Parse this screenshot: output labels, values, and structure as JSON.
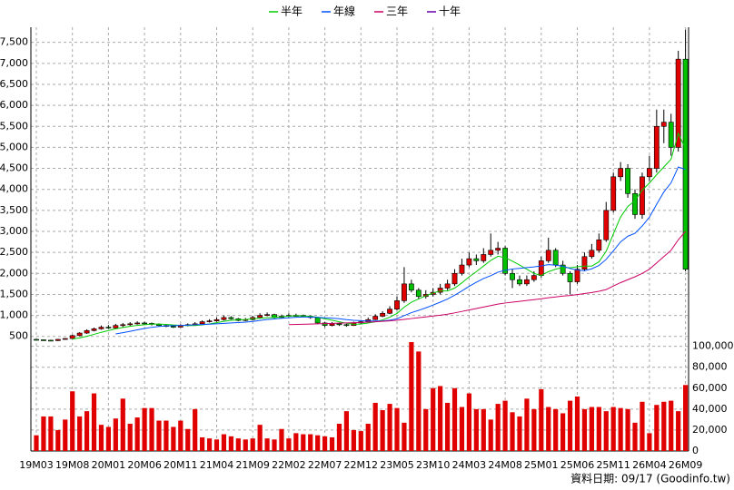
{
  "chart_data": {
    "type": "candlestick",
    "categories": [
      "19M03",
      null,
      null,
      null,
      null,
      "19M08",
      null,
      null,
      null,
      null,
      "20M01",
      null,
      null,
      null,
      null,
      "20M06",
      null,
      null,
      null,
      null,
      "20M11",
      null,
      null,
      null,
      null,
      "21M04",
      null,
      null,
      null,
      null,
      "21M09",
      null,
      null,
      null,
      null,
      "22M02",
      null,
      null,
      null,
      null,
      "22M07",
      null,
      null,
      null,
      null,
      "22M12",
      null,
      null,
      null,
      null,
      "23M05",
      null,
      null,
      null,
      null,
      "23M10",
      null,
      null,
      null,
      null,
      "24M03",
      null,
      null,
      null,
      null,
      "24M08",
      null,
      null,
      null,
      null,
      "25M01",
      null,
      null,
      null,
      null,
      "25M06",
      null,
      null,
      null,
      null,
      "25M11",
      null,
      null,
      null,
      null,
      "26M04",
      null,
      null,
      null,
      null,
      "26M09"
    ],
    "ohlc": [
      [
        430,
        440,
        400,
        420
      ],
      [
        420,
        430,
        400,
        410
      ],
      [
        410,
        420,
        390,
        400
      ],
      [
        400,
        440,
        390,
        430
      ],
      [
        430,
        460,
        420,
        450
      ],
      [
        450,
        540,
        440,
        520
      ],
      [
        520,
        600,
        500,
        580
      ],
      [
        580,
        670,
        560,
        640
      ],
      [
        640,
        710,
        620,
        680
      ],
      [
        680,
        760,
        660,
        720
      ],
      [
        720,
        770,
        680,
        700
      ],
      [
        700,
        800,
        690,
        760
      ],
      [
        760,
        820,
        720,
        780
      ],
      [
        780,
        840,
        750,
        800
      ],
      [
        800,
        860,
        780,
        820
      ],
      [
        820,
        850,
        780,
        810
      ],
      [
        810,
        830,
        760,
        790
      ],
      [
        790,
        810,
        740,
        760
      ],
      [
        760,
        790,
        720,
        740
      ],
      [
        740,
        770,
        700,
        720
      ],
      [
        720,
        790,
        710,
        760
      ],
      [
        760,
        810,
        740,
        780
      ],
      [
        780,
        840,
        760,
        800
      ],
      [
        800,
        880,
        790,
        850
      ],
      [
        850,
        910,
        830,
        870
      ],
      [
        870,
        950,
        850,
        900
      ],
      [
        900,
        1000,
        880,
        950
      ],
      [
        950,
        980,
        900,
        920
      ],
      [
        920,
        940,
        860,
        880
      ],
      [
        880,
        940,
        860,
        900
      ],
      [
        900,
        990,
        880,
        950
      ],
      [
        950,
        1050,
        930,
        1000
      ],
      [
        1000,
        1070,
        980,
        1020
      ],
      [
        1020,
        1040,
        930,
        950
      ],
      [
        950,
        1020,
        930,
        980
      ],
      [
        980,
        1050,
        960,
        1000
      ],
      [
        990,
        1040,
        970,
        1000
      ],
      [
        1000,
        1020,
        960,
        980
      ],
      [
        980,
        1000,
        920,
        950
      ],
      [
        950,
        960,
        790,
        820
      ],
      [
        820,
        840,
        720,
        760
      ],
      [
        760,
        840,
        740,
        800
      ],
      [
        800,
        830,
        750,
        780
      ],
      [
        780,
        800,
        730,
        760
      ],
      [
        760,
        850,
        750,
        820
      ],
      [
        820,
        890,
        800,
        850
      ],
      [
        850,
        950,
        840,
        900
      ],
      [
        900,
        1030,
        890,
        980
      ],
      [
        980,
        1100,
        960,
        1050
      ],
      [
        1050,
        1220,
        1030,
        1150
      ],
      [
        1150,
        1450,
        1120,
        1350
      ],
      [
        1350,
        2150,
        1300,
        1750
      ],
      [
        1750,
        1850,
        1550,
        1600
      ],
      [
        1600,
        1650,
        1380,
        1450
      ],
      [
        1450,
        1600,
        1400,
        1500
      ],
      [
        1500,
        1650,
        1450,
        1550
      ],
      [
        1550,
        1750,
        1500,
        1650
      ],
      [
        1650,
        1850,
        1600,
        1750
      ],
      [
        1750,
        2100,
        1700,
        2000
      ],
      [
        2000,
        2350,
        1950,
        2200
      ],
      [
        2200,
        2500,
        2150,
        2350
      ],
      [
        2350,
        2450,
        2200,
        2300
      ],
      [
        2300,
        2600,
        2250,
        2450
      ],
      [
        2450,
        2950,
        2400,
        2550
      ],
      [
        2550,
        2750,
        2450,
        2600
      ],
      [
        2600,
        2650,
        1950,
        2000
      ],
      [
        2000,
        2100,
        1650,
        1850
      ],
      [
        1850,
        1950,
        1700,
        1750
      ],
      [
        1750,
        1950,
        1700,
        1850
      ],
      [
        1850,
        2050,
        1800,
        1950
      ],
      [
        1950,
        2400,
        1900,
        2300
      ],
      [
        2300,
        2850,
        2250,
        2550
      ],
      [
        2550,
        2600,
        2150,
        2200
      ],
      [
        2200,
        2300,
        1950,
        2000
      ],
      [
        2000,
        2050,
        1500,
        1800
      ],
      [
        1800,
        2200,
        1750,
        2100
      ],
      [
        2100,
        2500,
        2050,
        2400
      ],
      [
        2400,
        2700,
        2350,
        2550
      ],
      [
        2550,
        2950,
        2500,
        2800
      ],
      [
        2800,
        3700,
        2750,
        3500
      ],
      [
        3500,
        4400,
        3450,
        4300
      ],
      [
        4300,
        4650,
        4200,
        4500
      ],
      [
        4500,
        4600,
        3800,
        3900
      ],
      [
        3900,
        4000,
        3300,
        3400
      ],
      [
        3400,
        4400,
        3300,
        4300
      ],
      [
        4300,
        4800,
        4200,
        4500
      ],
      [
        4500,
        5900,
        4400,
        5500
      ],
      [
        5500,
        5900,
        5100,
        5600
      ],
      [
        5600,
        5800,
        4800,
        5000
      ],
      [
        5000,
        7300,
        4900,
        7100
      ],
      [
        7100,
        7800,
        2050,
        2100
      ]
    ],
    "up_color": "#e00000",
    "down_color": "#00c000",
    "series": [
      {
        "name": "半年",
        "color": "#00cc00",
        "values": [
          null,
          null,
          null,
          null,
          null,
          438,
          465,
          503,
          550,
          598,
          640,
          680,
          713,
          740,
          763,
          778,
          793,
          793,
          787,
          773,
          763,
          758,
          760,
          775,
          797,
          827,
          858,
          882,
          895,
          903,
          917,
          933,
          945,
          950,
          967,
          983,
          992,
          988,
          977,
          955,
          918,
          885,
          848,
          812,
          790,
          795,
          818,
          848,
          893,
          958,
          1047,
          1197,
          1313,
          1392,
          1467,
          1533,
          1583,
          1583,
          1650,
          1775,
          1917,
          2042,
          2175,
          2308,
          2408,
          2375,
          2292,
          2200,
          2100,
          2000,
          1950,
          2042,
          2100,
          2142,
          2133,
          2158,
          2175,
          2175,
          2275,
          2525,
          2942,
          3342,
          3592,
          3733,
          3983,
          4150,
          4350,
          4533,
          4717,
          5333,
          4967
        ]
      },
      {
        "name": "年線",
        "color": "#0050ff",
        "values": [
          null,
          null,
          null,
          null,
          null,
          null,
          null,
          null,
          null,
          null,
          null,
          559,
          589,
          622,
          657,
          688,
          717,
          737,
          750,
          757,
          763,
          768,
          777,
          784,
          792,
          800,
          811,
          820,
          828,
          839,
          857,
          880,
          902,
          916,
          931,
          943,
          955,
          961,
          961,
          953,
          943,
          934,
          920,
          900,
          884,
          875,
          868,
          867,
          871,
          885,
          919,
          996,
          1066,
          1120,
          1180,
          1246,
          1315,
          1390,
          1482,
          1584,
          1692,
          1788,
          1879,
          1946,
          2029,
          2075,
          2105,
          2121,
          2138,
          2154,
          2179,
          2209,
          2196,
          2171,
          2117,
          2079,
          2063,
          2109,
          2188,
          2334,
          2538,
          2750,
          2884,
          2954,
          3129,
          3338,
          3646,
          3938,
          4155,
          4533,
          4475
        ]
      },
      {
        "name": "三年",
        "color": "#cc0066",
        "values": [
          null,
          null,
          null,
          null,
          null,
          null,
          null,
          null,
          null,
          null,
          null,
          null,
          null,
          null,
          null,
          null,
          null,
          null,
          null,
          null,
          null,
          null,
          null,
          null,
          null,
          null,
          null,
          null,
          null,
          null,
          null,
          null,
          null,
          null,
          null,
          780,
          785,
          790,
          795,
          800,
          805,
          810,
          815,
          820,
          826,
          832,
          840,
          848,
          858,
          870,
          885,
          905,
          925,
          945,
          965,
          985,
          1005,
          1030,
          1060,
          1095,
          1130,
          1165,
          1200,
          1235,
          1270,
          1295,
          1315,
          1335,
          1355,
          1375,
          1395,
          1420,
          1440,
          1460,
          1475,
          1495,
          1520,
          1545,
          1575,
          1615,
          1700,
          1780,
          1850,
          1920,
          2000,
          2100,
          2250,
          2400,
          2550,
          2800,
          3000
        ]
      },
      {
        "name": "十年",
        "color": "#6600aa",
        "values": [
          null,
          null,
          null,
          null,
          null,
          null,
          null,
          null,
          null,
          null,
          null,
          null,
          null,
          null,
          null,
          null,
          null,
          null,
          null,
          null,
          null,
          null,
          null,
          null,
          null,
          null,
          null,
          null,
          null,
          null,
          null,
          null,
          null,
          null,
          null,
          null,
          null,
          null,
          null,
          null,
          null,
          null,
          null,
          null,
          null,
          null,
          null,
          null,
          null,
          null,
          null,
          null,
          null,
          null,
          null,
          null,
          null,
          null,
          null,
          null,
          null,
          null,
          null,
          null,
          null,
          null,
          null,
          null,
          null,
          null,
          null,
          null,
          null,
          null,
          null,
          null,
          null,
          null,
          null,
          null,
          null,
          null,
          null,
          null,
          null,
          null,
          null,
          null,
          null,
          null,
          null
        ]
      }
    ],
    "volume": {
      "axis": "y2",
      "color": "#e00000",
      "values": [
        15000,
        33000,
        33000,
        20000,
        30000,
        57000,
        33000,
        38000,
        55000,
        25000,
        23000,
        31000,
        50000,
        26000,
        32000,
        41000,
        41000,
        29000,
        29000,
        23000,
        29000,
        21000,
        40000,
        13000,
        12000,
        11000,
        16000,
        14000,
        12000,
        11000,
        12000,
        25000,
        12000,
        11000,
        21000,
        12000,
        17000,
        16000,
        16000,
        15000,
        14000,
        13000,
        26000,
        38000,
        20000,
        19000,
        26000,
        46000,
        39000,
        45000,
        41000,
        27000,
        104000,
        95000,
        40000,
        60000,
        62000,
        46000,
        60000,
        42000,
        55000,
        40000,
        40000,
        30000,
        45000,
        48000,
        37000,
        33000,
        50000,
        40000,
        59000,
        42000,
        40000,
        36000,
        48000,
        52000,
        40000,
        42000,
        42000,
        38000,
        42000,
        41000,
        40000,
        27000,
        47000,
        17000,
        44000,
        47000,
        48000,
        38000,
        63000
      ]
    },
    "ylim": [
      300,
      7860
    ],
    "yticks": [
      500,
      {
        "value": 1000,
        "label": "1,000"
      },
      {
        "value": 1500,
        "label": "1,500"
      },
      {
        "value": 2000,
        "label": "2,000"
      },
      {
        "value": 2500,
        "label": "2,500"
      },
      {
        "value": 3000,
        "label": "3,000"
      },
      {
        "value": 3500,
        "label": "3,500"
      },
      {
        "value": 4000,
        "label": "4,000"
      },
      {
        "value": 4500,
        "label": "4,500"
      },
      {
        "value": 5000,
        "label": "5,000"
      },
      {
        "value": 5500,
        "label": "5,500"
      },
      {
        "value": 6000,
        "label": "6,000"
      },
      {
        "value": 6500,
        "label": "6,500"
      },
      {
        "value": 7000,
        "label": "7,000"
      },
      {
        "value": 7500,
        "label": "7,500"
      }
    ],
    "y2lim": [
      0,
      104000
    ],
    "y2ticks": [
      0,
      {
        "value": 20000,
        "label": "20,000"
      },
      {
        "value": 40000,
        "label": "40,000"
      },
      {
        "value": 60000,
        "label": "60,000"
      },
      {
        "value": 80000,
        "label": "80,000"
      },
      {
        "value": 100000,
        "label": "100,000"
      }
    ],
    "grid": true,
    "legend": "top",
    "source": "資料日期: 09/17 (Goodinfo.tw)"
  }
}
